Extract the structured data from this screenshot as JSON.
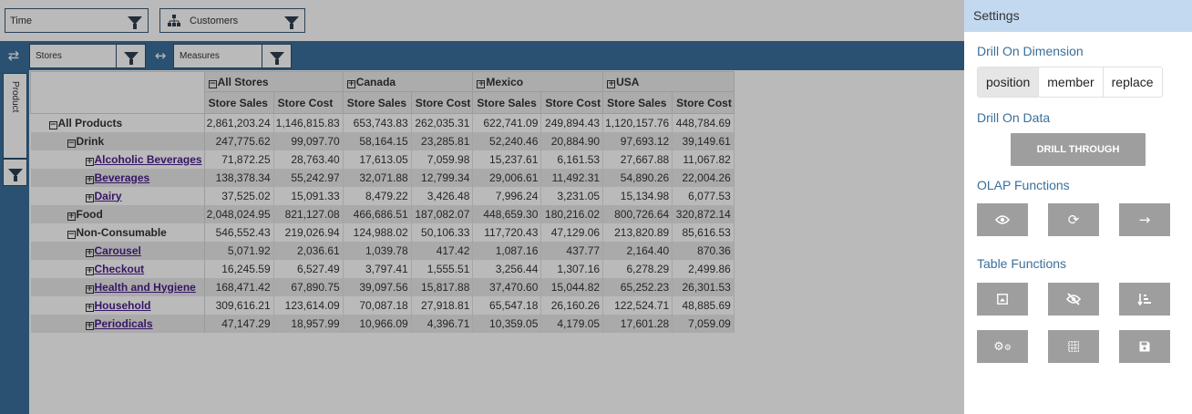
{
  "filters": {
    "time": "Time",
    "customers": "Customers"
  },
  "bar": {
    "stores": "Stores",
    "measures": "Measures"
  },
  "sidebar": {
    "product": "Product"
  },
  "table": {
    "col_groups": [
      "All Stores",
      "Canada",
      "Mexico",
      "USA"
    ],
    "measures": [
      "Store Sales",
      "Store Cost"
    ],
    "rows": [
      {
        "label": "All Products",
        "toggle": "−",
        "level": 0,
        "link": false,
        "values": [
          "2,861,203.24",
          "1,146,815.83",
          "653,743.83",
          "262,035.31",
          "622,741.09",
          "249,894.43",
          "1,120,157.76",
          "448,784.69"
        ]
      },
      {
        "label": "Drink",
        "toggle": "−",
        "level": 1,
        "link": false,
        "values": [
          "247,775.62",
          "99,097.70",
          "58,164.15",
          "23,285.81",
          "52,240.46",
          "20,884.90",
          "97,693.12",
          "39,149.61"
        ]
      },
      {
        "label": "Alcoholic Beverages",
        "toggle": "+",
        "level": 2,
        "link": true,
        "values": [
          "71,872.25",
          "28,763.40",
          "17,613.05",
          "7,059.98",
          "15,237.61",
          "6,161.53",
          "27,667.88",
          "11,067.82"
        ]
      },
      {
        "label": "Beverages",
        "toggle": "+",
        "level": 2,
        "link": true,
        "values": [
          "138,378.34",
          "55,242.97",
          "32,071.88",
          "12,799.34",
          "29,006.61",
          "11,492.31",
          "54,890.26",
          "22,004.26"
        ]
      },
      {
        "label": "Dairy",
        "toggle": "+",
        "level": 2,
        "link": true,
        "values": [
          "37,525.02",
          "15,091.33",
          "8,479.22",
          "3,426.48",
          "7,996.24",
          "3,231.05",
          "15,134.98",
          "6,077.53"
        ]
      },
      {
        "label": "Food",
        "toggle": "+",
        "level": 1,
        "link": false,
        "values": [
          "2,048,024.95",
          "821,127.08",
          "466,686.51",
          "187,082.07",
          "448,659.30",
          "180,216.02",
          "800,726.64",
          "320,872.14"
        ]
      },
      {
        "label": "Non-Consumable",
        "toggle": "−",
        "level": 1,
        "link": false,
        "values": [
          "546,552.43",
          "219,026.94",
          "124,988.02",
          "50,106.33",
          "117,720.43",
          "47,129.06",
          "213,820.89",
          "85,616.53"
        ]
      },
      {
        "label": "Carousel",
        "toggle": "+",
        "level": 2,
        "link": true,
        "values": [
          "5,071.92",
          "2,036.61",
          "1,039.78",
          "417.42",
          "1,087.16",
          "437.77",
          "2,164.40",
          "870.36"
        ]
      },
      {
        "label": "Checkout",
        "toggle": "+",
        "level": 2,
        "link": true,
        "values": [
          "16,245.59",
          "6,527.49",
          "3,797.41",
          "1,555.51",
          "3,256.44",
          "1,307.16",
          "6,278.29",
          "2,499.86"
        ]
      },
      {
        "label": "Health and Hygiene",
        "toggle": "+",
        "level": 2,
        "link": true,
        "values": [
          "168,471.42",
          "67,890.75",
          "39,097.56",
          "15,817.88",
          "37,470.60",
          "15,044.82",
          "65,252.23",
          "26,301.53"
        ]
      },
      {
        "label": "Household",
        "toggle": "+",
        "level": 2,
        "link": true,
        "values": [
          "309,616.21",
          "123,614.09",
          "70,087.18",
          "27,918.81",
          "65,547.18",
          "26,160.26",
          "122,524.71",
          "48,885.69"
        ]
      },
      {
        "label": "Periodicals",
        "toggle": "+",
        "level": 2,
        "link": true,
        "values": [
          "47,147.29",
          "18,957.99",
          "10,966.09",
          "4,396.71",
          "10,359.05",
          "4,179.05",
          "17,601.28",
          "7,059.09"
        ]
      }
    ]
  },
  "settings": {
    "title": "Settings",
    "drill_dimension_title": "Drill On Dimension",
    "drill_dimension_options": [
      "position",
      "member",
      "replace"
    ],
    "drill_dimension_selected": "position",
    "drill_data_title": "Drill On Data",
    "drill_through_label": "DRILL THROUGH",
    "olap_title": "OLAP Functions",
    "olap_icons": [
      "eye-icon",
      "refresh-icon",
      "arrow-right-icon"
    ],
    "table_title": "Table Functions",
    "table_icons": [
      "image-icon",
      "eye-off-icon",
      "sort-icon",
      "gears-icon",
      "grid-icon",
      "save-icon"
    ]
  }
}
